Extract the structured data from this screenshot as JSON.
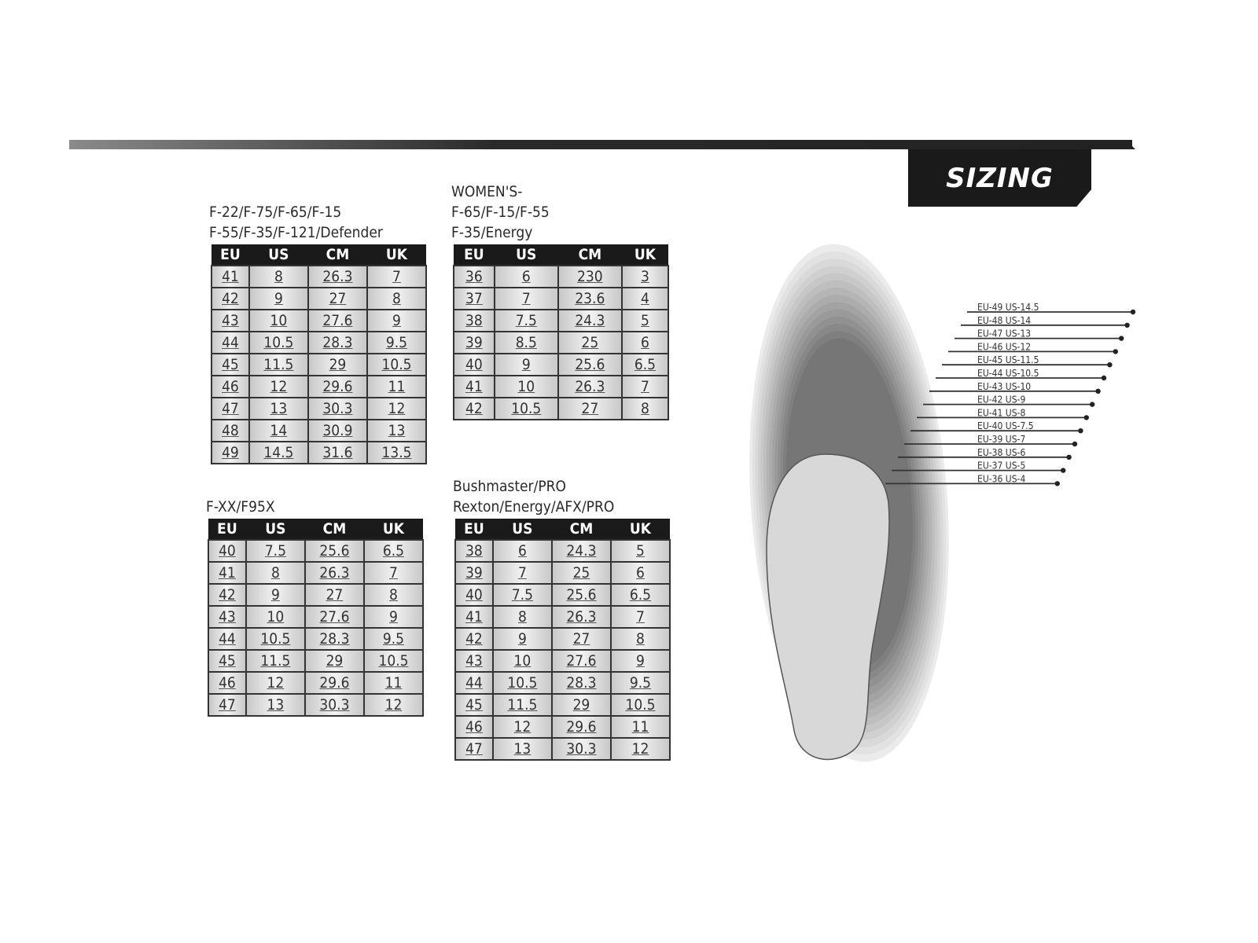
{
  "header": {
    "badge": "SIZING"
  },
  "tables": [
    {
      "title_lines": [
        "F-22/F-75/F-65/F-15",
        "F-55/F-35/F-121/Defender"
      ],
      "columns": [
        "EU",
        "US",
        "CM",
        "UK"
      ],
      "rows": [
        [
          "41",
          "8",
          "26.3",
          "7"
        ],
        [
          "42",
          "9",
          "27",
          "8"
        ],
        [
          "43",
          "10",
          "27.6",
          "9"
        ],
        [
          "44",
          "10.5",
          "28.3",
          "9.5"
        ],
        [
          "45",
          "11.5",
          "29",
          "10.5"
        ],
        [
          "46",
          "12",
          "29.6",
          "11"
        ],
        [
          "47",
          "13",
          "30.3",
          "12"
        ],
        [
          "48",
          "14",
          "30.9",
          "13"
        ],
        [
          "49",
          "14.5",
          "31.6",
          "13.5"
        ]
      ]
    },
    {
      "title_lines": [
        "WOMEN'S-",
        "F-65/F-15/F-55",
        "F-35/Energy"
      ],
      "columns": [
        "EU",
        "US",
        "CM",
        "UK"
      ],
      "rows": [
        [
          "36",
          "6",
          "230",
          "3"
        ],
        [
          "37",
          "7",
          "23.6",
          "4"
        ],
        [
          "38",
          "7.5",
          "24.3",
          "5"
        ],
        [
          "39",
          "8.5",
          "25",
          "6"
        ],
        [
          "40",
          "9",
          "25.6",
          "6.5"
        ],
        [
          "41",
          "10",
          "26.3",
          "7"
        ],
        [
          "42",
          "10.5",
          "27",
          "8"
        ]
      ]
    },
    {
      "title_lines": [
        "F-XX/F95X"
      ],
      "columns": [
        "EU",
        "US",
        "CM",
        "UK"
      ],
      "rows": [
        [
          "40",
          "7.5",
          "25.6",
          "6.5"
        ],
        [
          "41",
          "8",
          "26.3",
          "7"
        ],
        [
          "42",
          "9",
          "27",
          "8"
        ],
        [
          "43",
          "10",
          "27.6",
          "9"
        ],
        [
          "44",
          "10.5",
          "28.3",
          "9.5"
        ],
        [
          "45",
          "11.5",
          "29",
          "10.5"
        ],
        [
          "46",
          "12",
          "29.6",
          "11"
        ],
        [
          "47",
          "13",
          "30.3",
          "12"
        ]
      ]
    },
    {
      "title_lines": [
        "Bushmaster/PRO",
        "Rexton/Energy/AFX/PRO"
      ],
      "columns": [
        "EU",
        "US",
        "CM",
        "UK"
      ],
      "rows": [
        [
          "38",
          "6",
          "24.3",
          "5"
        ],
        [
          "39",
          "7",
          "25",
          "6"
        ],
        [
          "40",
          "7.5",
          "25.6",
          "6.5"
        ],
        [
          "41",
          "8",
          "26.3",
          "7"
        ],
        [
          "42",
          "9",
          "27",
          "8"
        ],
        [
          "43",
          "10",
          "27.6",
          "9"
        ],
        [
          "44",
          "10.5",
          "28.3",
          "9.5"
        ],
        [
          "45",
          "11.5",
          "29",
          "10.5"
        ],
        [
          "46",
          "12",
          "29.6",
          "11"
        ],
        [
          "47",
          "13",
          "30.3",
          "12"
        ]
      ]
    }
  ],
  "foot_labels": [
    "EU-49  US-14.5",
    "EU-48  US-14",
    "EU-47 US-13",
    "EU-46  US-12",
    "EU-45  US-11.5",
    "EU-44  US-10.5",
    "EU-43  US-10",
    "EU-42  US-9",
    "EU-41  US-8",
    "EU-40  US-7.5",
    "EU-39  US-7",
    "EU-38  US-6",
    "EU-37  US-5",
    "EU-36  US-4"
  ]
}
